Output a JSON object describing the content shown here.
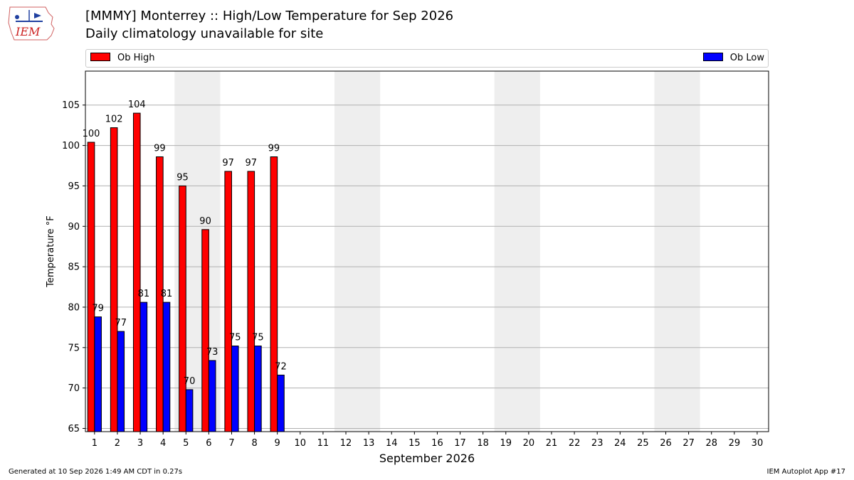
{
  "logo": {
    "text": "IEM",
    "icon": "iem-iowa-logo-icon"
  },
  "chart_data": {
    "type": "bar",
    "title": "[MMMY] Monterrey :: High/Low Temperature for Sep 2026",
    "subtitle": "Daily climatology unavailable for site",
    "xlabel": "September 2026",
    "ylabel": "Temperature °F",
    "ylim": [
      64.6,
      109.2
    ],
    "yticks": [
      65,
      70,
      75,
      80,
      85,
      90,
      95,
      100,
      105
    ],
    "days": [
      1,
      2,
      3,
      4,
      5,
      6,
      7,
      8,
      9,
      10,
      11,
      12,
      13,
      14,
      15,
      16,
      17,
      18,
      19,
      20,
      21,
      22,
      23,
      24,
      25,
      26,
      27,
      28,
      29,
      30
    ],
    "weekend_bands": [
      [
        5,
        6
      ],
      [
        12,
        13
      ],
      [
        19,
        20
      ],
      [
        26,
        27
      ]
    ],
    "grid": true,
    "legend_placement": "top",
    "series": [
      {
        "name": "Ob High",
        "color": "#ff0000",
        "values": [
          100.4,
          102.2,
          104.0,
          98.6,
          95.0,
          89.6,
          96.8,
          96.8,
          98.6
        ],
        "labels": [
          "100",
          "102",
          "104",
          "99",
          "95",
          "90",
          "97",
          "97",
          "99"
        ]
      },
      {
        "name": "Ob Low",
        "color": "#0000ff",
        "values": [
          78.8,
          77.0,
          80.6,
          80.6,
          69.8,
          73.4,
          75.2,
          75.2,
          71.6
        ],
        "labels": [
          "79",
          "77",
          "81",
          "81",
          "70",
          "73",
          "75",
          "75",
          "72"
        ]
      }
    ]
  },
  "footer": {
    "generated": "Generated at 10 Sep 2026 1:49 AM CDT in 0.27s",
    "app": "IEM Autoplot App #17"
  }
}
